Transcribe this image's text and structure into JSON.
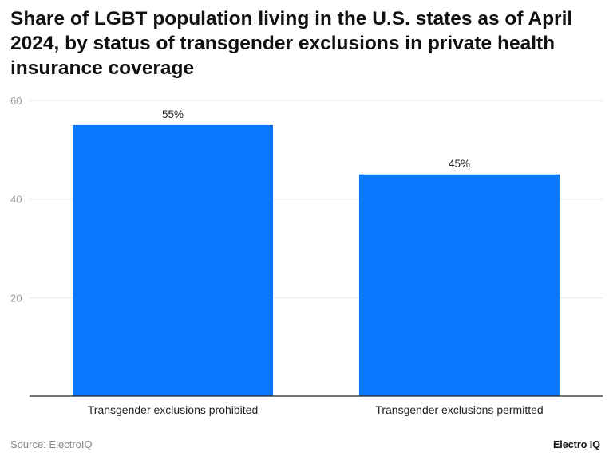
{
  "chart_data": {
    "type": "bar",
    "title": "Share of LGBT population living in the U.S. states as of April 2024, by status of transgender exclusions in private health insurance coverage",
    "categories": [
      "Transgender exclusions prohibited",
      "Transgender exclusions permitted"
    ],
    "values": [
      55,
      45
    ],
    "data_labels": [
      "55%",
      "45%"
    ],
    "yticks": [
      20,
      40,
      60
    ],
    "ylim": [
      0,
      60
    ],
    "grid": true,
    "color": "#0a77ff"
  },
  "footer": {
    "source": "Source: ElectroIQ",
    "brand": "Electro IQ"
  }
}
